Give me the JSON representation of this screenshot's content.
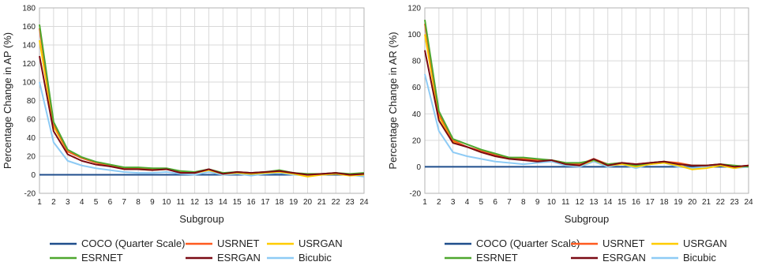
{
  "colors": {
    "COCO (Quarter Scale)": "#1f4e8c",
    "USRNET": "#ff5a1f",
    "USRGAN": "#ffcc00",
    "ESRNET": "#4ea72e",
    "ESRGAN": "#7a0a14",
    "Bicubic": "#8ecbf5"
  },
  "chart_data": [
    {
      "type": "line",
      "title": "",
      "xlabel": "Subgroup",
      "ylabel": "Percentage Change in AP (%)",
      "x": [
        1,
        2,
        3,
        4,
        5,
        6,
        7,
        8,
        9,
        10,
        11,
        12,
        13,
        14,
        15,
        16,
        17,
        18,
        19,
        20,
        21,
        22,
        23,
        24
      ],
      "ylim": [
        -20,
        180
      ],
      "yticks": [
        -20,
        0,
        20,
        40,
        60,
        80,
        100,
        120,
        140,
        160,
        180
      ],
      "grid": true,
      "legend": "bottom",
      "legend_rows": [
        [
          "COCO (Quarter Scale)",
          "USRNET",
          "USRGAN"
        ],
        [
          "ESRNET",
          "ESRGAN",
          "Bicubic"
        ]
      ],
      "series": [
        {
          "name": "COCO (Quarter Scale)",
          "values": [
            0,
            0,
            0,
            0,
            0,
            0,
            0,
            0,
            0,
            0,
            0,
            0,
            0,
            0,
            0,
            0,
            0,
            0,
            0,
            0,
            0,
            0,
            0,
            0
          ]
        },
        {
          "name": "Bicubic",
          "values": [
            100,
            35,
            15,
            10,
            7,
            5,
            3,
            2,
            2,
            3,
            1,
            0,
            3,
            0,
            1,
            -1,
            1,
            2,
            0,
            -1,
            0,
            1,
            0,
            -2
          ]
        },
        {
          "name": "USRGAN",
          "values": [
            145,
            52,
            25,
            18,
            13,
            10,
            7,
            6,
            5,
            6,
            3,
            2,
            5,
            1,
            2,
            1,
            2,
            3,
            1,
            -2,
            0,
            1,
            -1,
            0
          ]
        },
        {
          "name": "USRNET",
          "values": [
            158,
            55,
            25,
            18,
            13,
            10,
            7,
            7,
            6,
            6,
            3,
            2,
            6,
            1,
            3,
            2,
            3,
            4,
            2,
            0,
            1,
            2,
            0,
            1
          ]
        },
        {
          "name": "ESRNET",
          "values": [
            162,
            57,
            27,
            19,
            14,
            11,
            8,
            8,
            7,
            7,
            4,
            3,
            6,
            2,
            3,
            2,
            3,
            5,
            2,
            1,
            1,
            2,
            1,
            2
          ]
        },
        {
          "name": "ESRGAN",
          "values": [
            128,
            47,
            22,
            15,
            11,
            9,
            6,
            6,
            5,
            6,
            2,
            2,
            6,
            1,
            3,
            2,
            3,
            4,
            2,
            0,
            1,
            2,
            0,
            1
          ]
        }
      ]
    },
    {
      "type": "line",
      "title": "",
      "xlabel": "Subgroup",
      "ylabel": "Percentage Change in AR (%)",
      "x": [
        1,
        2,
        3,
        4,
        5,
        6,
        7,
        8,
        9,
        10,
        11,
        12,
        13,
        14,
        15,
        16,
        17,
        18,
        19,
        20,
        21,
        22,
        23,
        24
      ],
      "ylim": [
        -20,
        120
      ],
      "yticks": [
        -20,
        0,
        20,
        40,
        60,
        80,
        100,
        120
      ],
      "grid": true,
      "legend": "bottom",
      "legend_rows": [
        [
          "COCO (Quarter Scale)",
          "USRNET",
          "USRGAN"
        ],
        [
          "ESRNET",
          "ESRGAN",
          "Bicubic"
        ]
      ],
      "series": [
        {
          "name": "COCO (Quarter Scale)",
          "values": [
            0,
            0,
            0,
            0,
            0,
            0,
            0,
            0,
            0,
            0,
            0,
            0,
            0,
            0,
            0,
            0,
            0,
            0,
            0,
            0,
            0,
            0,
            0,
            0
          ]
        },
        {
          "name": "Bicubic",
          "values": [
            70,
            27,
            11,
            8,
            6,
            4,
            3,
            2,
            3,
            4,
            1,
            0,
            4,
            0,
            2,
            -1,
            2,
            3,
            0,
            -1,
            0,
            1,
            -1,
            0
          ]
        },
        {
          "name": "USRGAN",
          "values": [
            100,
            38,
            19,
            15,
            11,
            8,
            6,
            6,
            5,
            5,
            2,
            1,
            5,
            1,
            2,
            0,
            2,
            3,
            1,
            -2,
            -1,
            1,
            -1,
            1
          ]
        },
        {
          "name": "USRNET",
          "values": [
            108,
            40,
            20,
            15,
            12,
            9,
            7,
            6,
            5,
            5,
            3,
            2,
            6,
            2,
            3,
            2,
            3,
            4,
            3,
            1,
            1,
            2,
            0,
            1
          ]
        },
        {
          "name": "ESRNET",
          "values": [
            111,
            42,
            21,
            17,
            13,
            10,
            7,
            7,
            6,
            5,
            3,
            3,
            5,
            2,
            3,
            1,
            3,
            4,
            2,
            1,
            1,
            2,
            1,
            0
          ]
        },
        {
          "name": "ESRGAN",
          "values": [
            88,
            35,
            18,
            15,
            11,
            8,
            6,
            5,
            4,
            5,
            2,
            1,
            6,
            1,
            3,
            2,
            3,
            4,
            2,
            1,
            1,
            2,
            0,
            1
          ]
        }
      ]
    }
  ]
}
